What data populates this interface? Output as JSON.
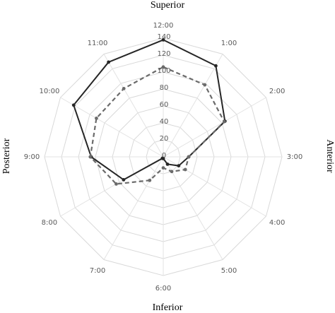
{
  "chart_data": {
    "type": "radar",
    "categories": [
      "12:00",
      "1:00",
      "2:00",
      "3:00",
      "4:00",
      "5:00",
      "6:00",
      "7:00",
      "8:00",
      "9:00",
      "10:00",
      "11:00"
    ],
    "rlim": [
      0,
      140
    ],
    "ticks": [
      "0",
      "20",
      "40",
      "60",
      "80",
      "100",
      "120",
      "140"
    ],
    "grid": true,
    "direction_labels": {
      "top": "Superior",
      "right": "Anterior",
      "bottom": "Inferior",
      "left": "Posterior"
    },
    "series": [
      {
        "style": "solid",
        "color": "#262626",
        "values": [
          138,
          124,
          84,
          30,
          21,
          10,
          2,
          2,
          54,
          85,
          122,
          129
        ]
      },
      {
        "style": "dashed",
        "color": "#6b6b6b",
        "values": [
          106,
          98,
          83,
          30,
          30,
          20,
          13,
          32,
          64,
          86,
          91,
          93
        ]
      }
    ]
  }
}
